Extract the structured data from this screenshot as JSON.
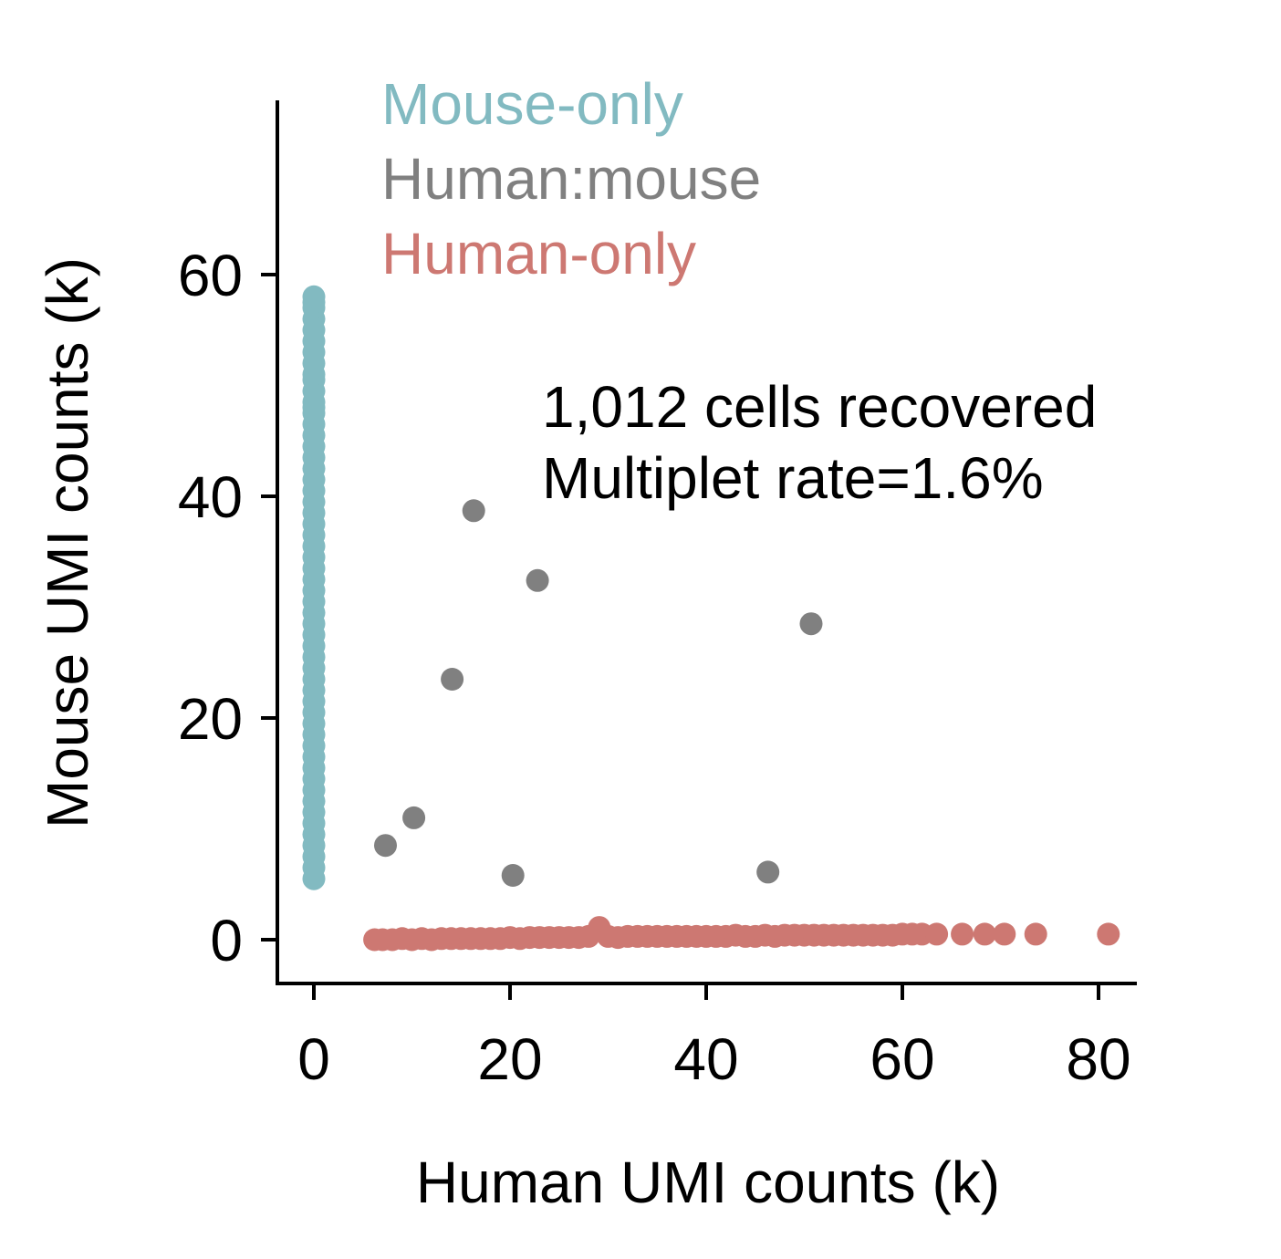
{
  "chart_data": {
    "type": "scatter",
    "xlabel": "Human UMI counts (k)",
    "ylabel": "Mouse UMI counts (k)",
    "xlim": [
      -4,
      84
    ],
    "ylim": [
      -4,
      76
    ],
    "x_ticks": [
      0,
      20,
      40,
      60,
      80
    ],
    "y_ticks": [
      0,
      20,
      40,
      60
    ],
    "grid": false,
    "legend_position": "top-left",
    "annotations": [
      "1,012 cells recovered",
      "Multiplet rate=1.6%"
    ],
    "series": [
      {
        "name": "Mouse-only",
        "color": "#82bac1",
        "x": [
          0,
          0,
          0,
          0,
          0,
          0,
          0,
          0,
          0,
          0,
          0,
          0,
          0,
          0,
          0,
          0,
          0,
          0,
          0,
          0,
          0,
          0,
          0,
          0,
          0,
          0,
          0,
          0,
          0,
          0,
          0,
          0,
          0,
          0,
          0,
          0,
          0,
          0,
          0,
          0,
          0,
          0,
          0,
          0,
          0,
          0,
          0,
          0,
          0,
          0,
          0,
          0,
          0,
          0,
          0,
          0
        ],
        "y": [
          5.5,
          6.5,
          7.5,
          8.5,
          9.5,
          10.5,
          11.5,
          12.5,
          13.5,
          14.5,
          15.5,
          16.5,
          17.5,
          18.5,
          19.5,
          20.5,
          21.5,
          22.5,
          23.5,
          24.5,
          25.5,
          26.5,
          27.5,
          28.5,
          29.5,
          30.5,
          31.5,
          32.5,
          33.5,
          34.5,
          35.5,
          36.5,
          37.5,
          38.5,
          39.5,
          40.5,
          41.5,
          42.5,
          43.5,
          44.5,
          45.5,
          46.5,
          47.5,
          48.5,
          49.5,
          50.5,
          51.0,
          53.0,
          54.0,
          55.0,
          56.0,
          57.0,
          57.5,
          58.0,
          52.0,
          48.0
        ]
      },
      {
        "name": "Human:mouse",
        "color": "#808080",
        "x": [
          7.3,
          10.2,
          20.3,
          14.1,
          16.3,
          22.8,
          50.7,
          46.3
        ],
        "y": [
          8.5,
          11.0,
          5.8,
          23.5,
          38.7,
          32.4,
          28.5,
          6.1
        ]
      },
      {
        "name": "Human-only",
        "color": "#cd7872",
        "x": [
          6.2,
          7,
          8,
          9,
          10,
          11,
          12,
          13,
          14,
          15,
          16,
          17,
          18,
          19,
          20,
          21,
          22,
          23,
          24,
          25,
          26,
          27,
          28,
          29.1,
          30,
          31,
          32,
          33,
          34,
          35,
          36,
          37,
          38,
          39,
          40,
          41,
          42,
          43,
          44,
          45,
          46,
          47,
          48,
          49,
          50,
          51,
          52,
          53,
          54,
          55,
          56,
          57,
          58,
          59,
          60,
          61,
          62,
          63.5,
          66.1,
          68.4,
          70.4,
          73.6,
          81.0
        ],
        "y": [
          0,
          0,
          0,
          0.1,
          0,
          0.1,
          0,
          0.1,
          0.1,
          0.1,
          0.1,
          0.1,
          0.1,
          0.1,
          0.2,
          0.1,
          0.2,
          0.2,
          0.2,
          0.2,
          0.2,
          0.2,
          0.3,
          1.1,
          0.3,
          0.2,
          0.3,
          0.3,
          0.3,
          0.3,
          0.3,
          0.3,
          0.3,
          0.3,
          0.3,
          0.3,
          0.3,
          0.4,
          0.3,
          0.3,
          0.4,
          0.3,
          0.4,
          0.4,
          0.4,
          0.4,
          0.4,
          0.4,
          0.4,
          0.4,
          0.4,
          0.4,
          0.4,
          0.4,
          0.5,
          0.5,
          0.5,
          0.5,
          0.5,
          0.5,
          0.5,
          0.5,
          0.5
        ]
      }
    ]
  }
}
